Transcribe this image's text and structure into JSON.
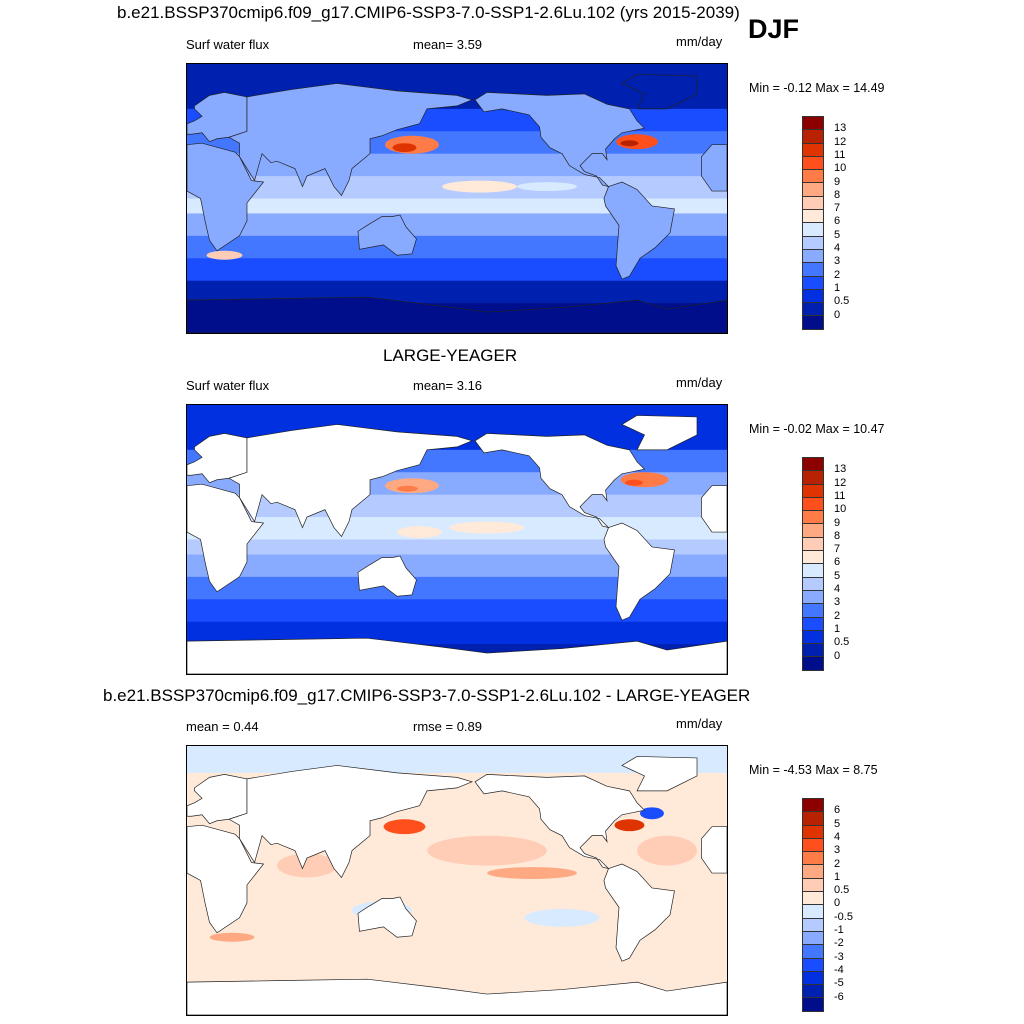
{
  "season": "DJF",
  "units": "mm/day",
  "panels": [
    {
      "title": "b.e21.BSSP370cmip6.f09_g17.CMIP6-SSP3-7.0-SSP1-2.6Lu.102 (yrs 2015-2039)",
      "left_label": "Surf water flux",
      "center_label": "mean=   3.59",
      "units": "mm/day",
      "minmax": "Min =  -0.12 Max =  14.49",
      "colorbar_labels": [
        "13",
        "12",
        "11",
        "10",
        "9",
        "8",
        "7",
        "6",
        "5",
        "4",
        "3",
        "2",
        "1",
        "0.5",
        "0"
      ]
    },
    {
      "title": "LARGE-YEAGER",
      "left_label": "Surf water flux",
      "center_label": "mean=   3.16",
      "units": "mm/day",
      "minmax": "Min =  -0.02 Max =  10.47",
      "colorbar_labels": [
        "13",
        "12",
        "11",
        "10",
        "9",
        "8",
        "7",
        "6",
        "5",
        "4",
        "3",
        "2",
        "1",
        "0.5",
        "0"
      ]
    },
    {
      "title": "b.e21.BSSP370cmip6.f09_g17.CMIP6-SSP3-7.0-SSP1-2.6Lu.102 - LARGE-YEAGER",
      "left_label": "mean =   0.44",
      "center_label": "rmse =   0.89",
      "units": "mm/day",
      "minmax": "Min =  -4.53 Max =   8.75",
      "colorbar_labels": [
        "6",
        "5",
        "4",
        "3",
        "2",
        "1",
        "0.5",
        "0",
        "-0.5",
        "-1",
        "-2",
        "-3",
        "-4",
        "-5",
        "-6"
      ]
    }
  ],
  "colors": [
    "#8c0000",
    "#b82200",
    "#e03400",
    "#ff4f1c",
    "#ff7b47",
    "#ffa982",
    "#ffcdb5",
    "#ffe9d9",
    "#d8eaff",
    "#b5cbff",
    "#88aaff",
    "#4477ff",
    "#1a4dff",
    "#0030e0",
    "#0020b0",
    "#000e8c"
  ]
}
